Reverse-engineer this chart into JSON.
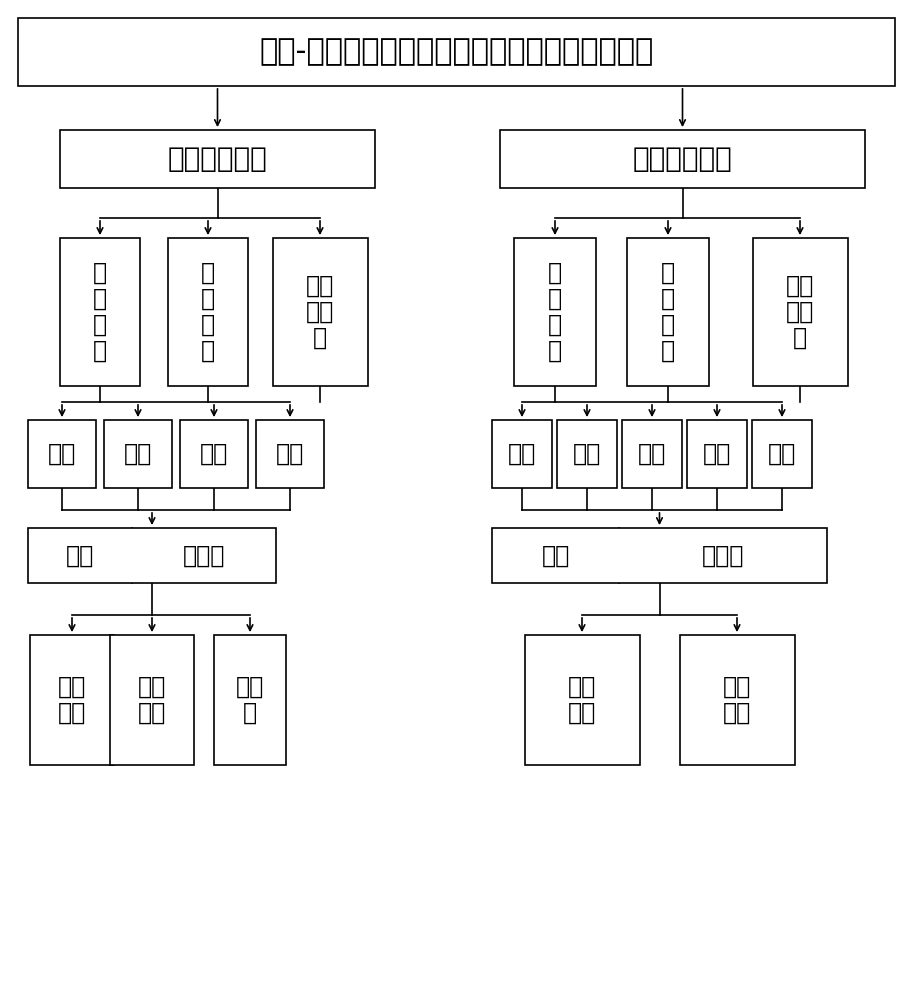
{
  "title": "叶片-转子系统流固耦合动态特性试验装置的功能",
  "left_l1": "模态特性试验",
  "right_l1": "振动响应试验",
  "left_l2": [
    "气\n固\n耦\n合",
    "液\n固\n耦\n合",
    "气液\n固耦\n合"
  ],
  "right_l2": [
    "气\n固\n耦\n合",
    "液\n固\n耦\n合",
    "气液\n固耦\n合"
  ],
  "left_l3": [
    "压力",
    "温度",
    "流速",
    "转速"
  ],
  "right_l3": [
    "压力",
    "温度",
    "流速",
    "转速",
    "激励"
  ],
  "left_l4": [
    "位移",
    "加速度"
  ],
  "right_l4": [
    "位移",
    "加速度"
  ],
  "left_l5": [
    "固有\n频率",
    "频响\n函数",
    "阻尼\n比"
  ],
  "right_l5": [
    "频响\n函数",
    "振动\n响应"
  ],
  "bg_color": "#ffffff",
  "box_facecolor": "#ffffff",
  "border_color": "#000000",
  "text_color": "#000000",
  "lw": 1.2
}
